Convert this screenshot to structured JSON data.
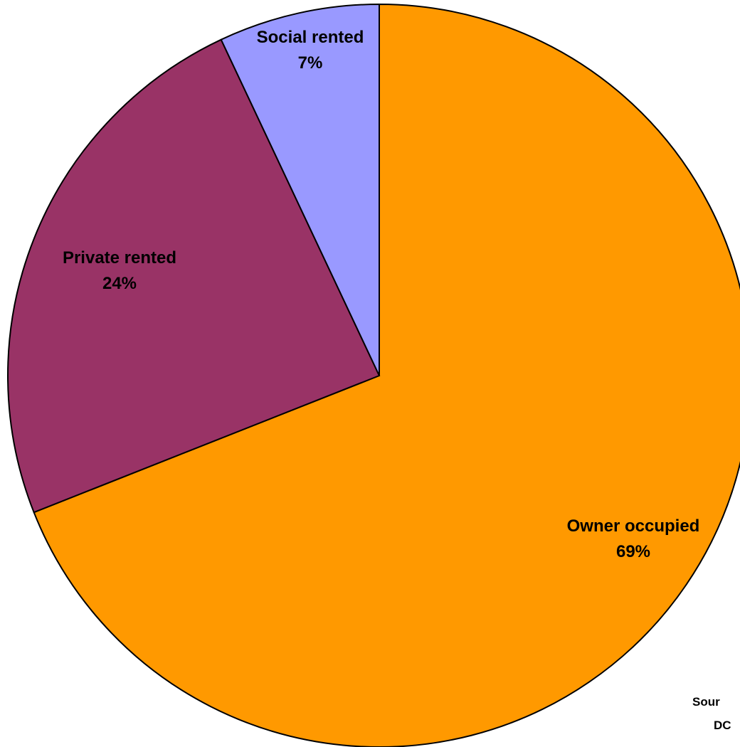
{
  "chart_data": {
    "type": "pie",
    "slices": [
      {
        "label": "Owner occupied",
        "value": 69,
        "value_label": "69%",
        "color": "#FF9900"
      },
      {
        "label": "Private rented",
        "value": 24,
        "value_label": "24%",
        "color": "#993366"
      },
      {
        "label": "Social rented",
        "value": 7,
        "value_label": "7%",
        "color": "#9999FF"
      }
    ],
    "source_lines": [
      "Sour",
      "DC"
    ]
  }
}
